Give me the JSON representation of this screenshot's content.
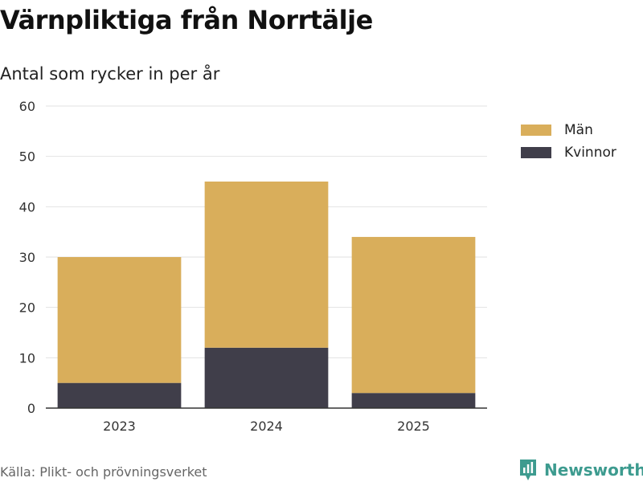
{
  "title": "Värnpliktiga från Norrtälje",
  "subtitle": "Antal som rycker in per år",
  "source": "Källa: Plikt- och prövningsverket",
  "brand": {
    "name": "Newsworthy",
    "icon": "newsworthy-logo-icon",
    "color": "#3d9b8f"
  },
  "chart_data": {
    "type": "bar",
    "stacked": true,
    "title": "Värnpliktiga från Norrtälje",
    "subtitle": "Antal som rycker in per år",
    "xlabel": "",
    "ylabel": "",
    "categories": [
      "2023",
      "2024",
      "2025"
    ],
    "series": [
      {
        "name": "Kvinnor",
        "values": [
          5,
          12,
          3
        ],
        "color": "#403e4a"
      },
      {
        "name": "Män",
        "values": [
          25,
          33,
          31
        ],
        "color": "#d9ae5b"
      }
    ],
    "legend": [
      {
        "name": "Män",
        "color": "#d9ae5b"
      },
      {
        "name": "Kvinnor",
        "color": "#403e4a"
      }
    ],
    "ylim": [
      0,
      60
    ],
    "yticks": [
      0,
      10,
      20,
      30,
      40,
      50,
      60
    ],
    "grid": true,
    "legend_position": "top-right"
  }
}
